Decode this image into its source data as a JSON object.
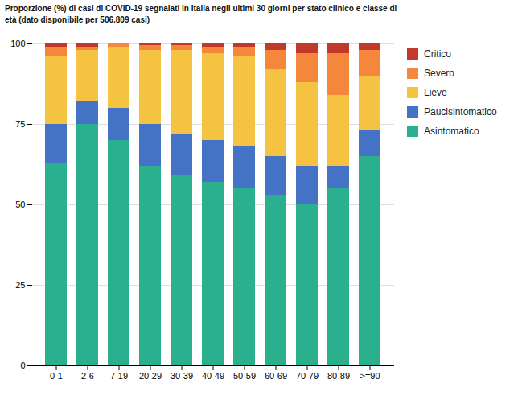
{
  "chart_data": {
    "type": "bar",
    "stacked": true,
    "title": "Proporzione (%) di casi di COVID-19 segnalati in Italia negli ultimi 30 giorni per stato clinico e classe di\netà (dato disponibile per 506.809 casi)",
    "categories": [
      "0-1",
      "2-6",
      "7-19",
      "20-29",
      "30-39",
      "40-49",
      "50-59",
      "60-69",
      "70-79",
      "80-89",
      ">=90"
    ],
    "series": [
      {
        "name": "Asintomatico",
        "color": "#2ab08e",
        "values": [
          63,
          75,
          70,
          62,
          59,
          57,
          55,
          53,
          50,
          55,
          65
        ]
      },
      {
        "name": "Paucisintomatico",
        "color": "#4472c4",
        "values": [
          12,
          7,
          10,
          13,
          13,
          13,
          13,
          12,
          12,
          7,
          8
        ]
      },
      {
        "name": "Lieve",
        "color": "#f5c242",
        "values": [
          21,
          16,
          19,
          23,
          26,
          27,
          28,
          27,
          26,
          22,
          17
        ]
      },
      {
        "name": "Severo",
        "color": "#f5873d",
        "values": [
          3,
          1,
          1,
          1.5,
          1.5,
          2,
          3,
          6,
          9,
          13,
          8
        ]
      },
      {
        "name": "Critico",
        "color": "#c0392b",
        "values": [
          1,
          1,
          0,
          0.5,
          0.5,
          1,
          1,
          2,
          3,
          3,
          2
        ]
      }
    ],
    "ylim": [
      0,
      100
    ],
    "yticks": [
      0,
      25,
      50,
      75,
      100
    ],
    "grid": true,
    "legend": "right"
  }
}
